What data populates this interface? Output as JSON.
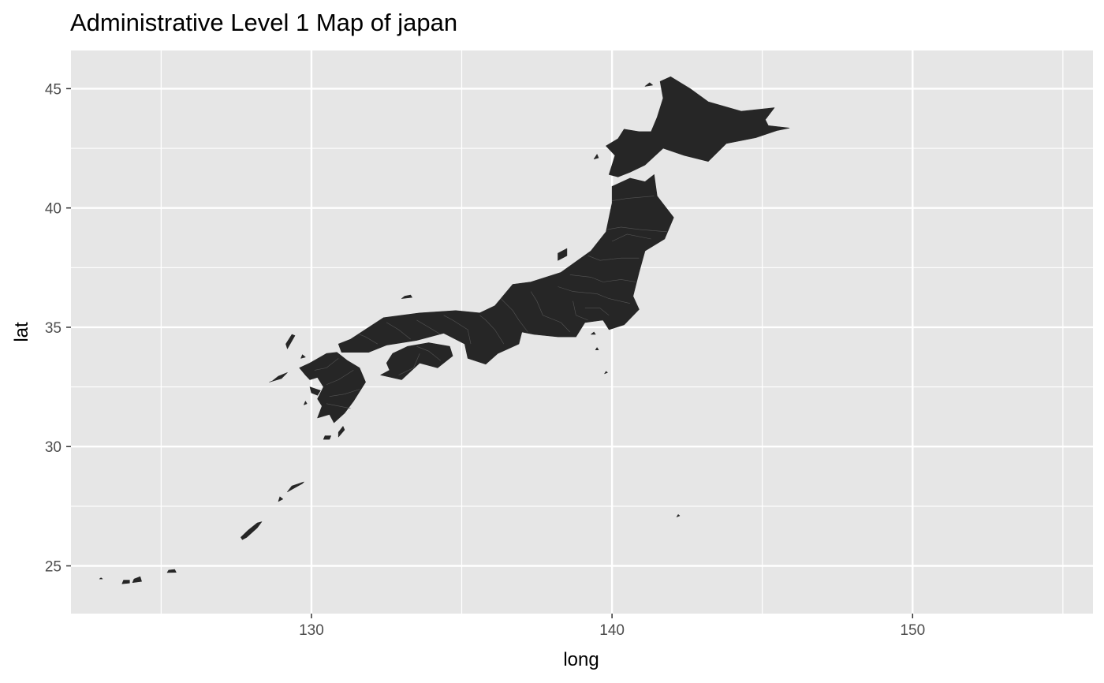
{
  "title": "Administrative Level 1 Map of japan",
  "chart_data": {
    "type": "map",
    "title": "Administrative Level 1 Map of japan",
    "xlabel": "long",
    "ylabel": "lat",
    "xlim": [
      122,
      156
    ],
    "ylim": [
      23,
      46.6
    ],
    "x_ticks": [
      130,
      140,
      150
    ],
    "y_ticks": [
      25,
      30,
      35,
      40,
      45
    ],
    "x_minor": [
      125,
      135,
      145,
      155
    ],
    "y_minor": [
      27.5,
      32.5,
      37.5,
      42.5
    ],
    "fill_color": "#262626",
    "panel_background": "#e6e6e6",
    "grid_color": "#ffffff",
    "regions": [
      {
        "name": "Hokkaido",
        "outline": [
          [
            139.9,
            41.4
          ],
          [
            140.2,
            41.3
          ],
          [
            140.6,
            41.5
          ],
          [
            141.1,
            41.8
          ],
          [
            141.7,
            42.5
          ],
          [
            142.4,
            42.2
          ],
          [
            143.2,
            41.95
          ],
          [
            143.8,
            42.7
          ],
          [
            144.8,
            42.95
          ],
          [
            145.5,
            43.25
          ],
          [
            145.9,
            43.35
          ],
          [
            145.2,
            43.45
          ],
          [
            145.1,
            43.7
          ],
          [
            145.4,
            44.2
          ],
          [
            144.3,
            44.05
          ],
          [
            143.2,
            44.45
          ],
          [
            142.6,
            45.0
          ],
          [
            141.95,
            45.5
          ],
          [
            141.6,
            45.3
          ],
          [
            141.7,
            44.6
          ],
          [
            141.5,
            43.8
          ],
          [
            141.3,
            43.2
          ],
          [
            140.9,
            43.2
          ],
          [
            140.4,
            43.3
          ],
          [
            140.2,
            42.9
          ],
          [
            139.8,
            42.6
          ],
          [
            140.1,
            42.2
          ]
        ]
      },
      {
        "name": "Honshu",
        "outline": [
          [
            141.4,
            41.4
          ],
          [
            141.5,
            40.5
          ],
          [
            142.05,
            39.6
          ],
          [
            141.75,
            38.7
          ],
          [
            141.1,
            38.2
          ],
          [
            140.9,
            37.3
          ],
          [
            140.7,
            36.3
          ],
          [
            140.9,
            35.75
          ],
          [
            140.4,
            35.1
          ],
          [
            139.9,
            34.9
          ],
          [
            139.7,
            35.3
          ],
          [
            139.1,
            35.2
          ],
          [
            138.8,
            34.6
          ],
          [
            138.2,
            34.6
          ],
          [
            137.4,
            34.7
          ],
          [
            137.0,
            34.8
          ],
          [
            136.9,
            34.3
          ],
          [
            136.2,
            33.9
          ],
          [
            135.8,
            33.45
          ],
          [
            135.2,
            33.7
          ],
          [
            135.1,
            34.3
          ],
          [
            134.4,
            34.75
          ],
          [
            133.5,
            34.45
          ],
          [
            132.5,
            34.25
          ],
          [
            131.9,
            33.95
          ],
          [
            131.0,
            33.95
          ],
          [
            130.9,
            34.3
          ],
          [
            131.3,
            34.5
          ],
          [
            132.4,
            35.4
          ],
          [
            133.6,
            35.6
          ],
          [
            134.8,
            35.7
          ],
          [
            135.6,
            35.6
          ],
          [
            136.1,
            35.9
          ],
          [
            136.7,
            36.8
          ],
          [
            137.3,
            36.9
          ],
          [
            138.3,
            37.3
          ],
          [
            139.3,
            38.2
          ],
          [
            139.8,
            39.0
          ],
          [
            140.0,
            40.2
          ],
          [
            140.0,
            40.9
          ],
          [
            140.6,
            41.25
          ],
          [
            141.1,
            41.1
          ],
          [
            141.3,
            41.3
          ]
        ]
      },
      {
        "name": "Shikoku",
        "outline": [
          [
            132.6,
            33.2
          ],
          [
            132.3,
            33.0
          ],
          [
            133.0,
            32.8
          ],
          [
            133.6,
            33.5
          ],
          [
            134.2,
            33.3
          ],
          [
            134.7,
            33.8
          ],
          [
            134.6,
            34.2
          ],
          [
            133.9,
            34.35
          ],
          [
            133.2,
            34.2
          ],
          [
            132.7,
            33.9
          ],
          [
            132.5,
            33.5
          ]
        ]
      },
      {
        "name": "Kyushu",
        "outline": [
          [
            130.85,
            33.95
          ],
          [
            131.2,
            33.6
          ],
          [
            131.6,
            33.3
          ],
          [
            131.8,
            32.7
          ],
          [
            131.4,
            31.9
          ],
          [
            131.1,
            31.4
          ],
          [
            130.75,
            31.0
          ],
          [
            130.6,
            31.35
          ],
          [
            130.2,
            31.2
          ],
          [
            130.35,
            31.7
          ],
          [
            130.2,
            32.0
          ],
          [
            130.4,
            32.5
          ],
          [
            130.2,
            32.9
          ],
          [
            129.95,
            32.8
          ],
          [
            129.8,
            33.0
          ],
          [
            129.6,
            33.3
          ],
          [
            129.95,
            33.5
          ],
          [
            130.5,
            33.9
          ]
        ]
      },
      {
        "name": "Sado",
        "outline": [
          [
            138.2,
            37.8
          ],
          [
            138.5,
            38.0
          ],
          [
            138.5,
            38.3
          ],
          [
            138.2,
            38.1
          ]
        ]
      },
      {
        "name": "Oki",
        "outline": [
          [
            133.0,
            36.2
          ],
          [
            133.35,
            36.25
          ],
          [
            133.3,
            36.35
          ],
          [
            133.1,
            36.3
          ]
        ]
      },
      {
        "name": "Tsushima",
        "outline": [
          [
            129.2,
            34.1
          ],
          [
            129.45,
            34.65
          ],
          [
            129.35,
            34.7
          ],
          [
            129.15,
            34.3
          ]
        ]
      },
      {
        "name": "Goto",
        "outline": [
          [
            128.6,
            32.7
          ],
          [
            129.0,
            32.85
          ],
          [
            129.2,
            33.1
          ],
          [
            128.9,
            32.95
          ],
          [
            128.7,
            32.75
          ]
        ]
      },
      {
        "name": "Amakusa",
        "outline": [
          [
            129.95,
            32.5
          ],
          [
            130.3,
            32.35
          ],
          [
            130.2,
            32.15
          ],
          [
            130.0,
            32.25
          ]
        ]
      },
      {
        "name": "Tanegashima",
        "outline": [
          [
            130.9,
            30.4
          ],
          [
            131.1,
            30.7
          ],
          [
            131.05,
            30.85
          ],
          [
            130.9,
            30.6
          ]
        ]
      },
      {
        "name": "Yakushima",
        "outline": [
          [
            130.4,
            30.3
          ],
          [
            130.6,
            30.3
          ],
          [
            130.65,
            30.45
          ],
          [
            130.45,
            30.45
          ]
        ]
      },
      {
        "name": "Amami",
        "outline": [
          [
            129.2,
            28.1
          ],
          [
            129.7,
            28.45
          ],
          [
            129.75,
            28.52
          ],
          [
            129.35,
            28.35
          ]
        ]
      },
      {
        "name": "Okinawa",
        "outline": [
          [
            127.7,
            26.1
          ],
          [
            127.85,
            26.2
          ],
          [
            128.2,
            26.6
          ],
          [
            128.35,
            26.85
          ],
          [
            128.2,
            26.8
          ],
          [
            127.9,
            26.5
          ],
          [
            127.65,
            26.2
          ]
        ]
      },
      {
        "name": "Ishigaki",
        "outline": [
          [
            124.05,
            24.3
          ],
          [
            124.35,
            24.35
          ],
          [
            124.3,
            24.55
          ],
          [
            124.1,
            24.45
          ]
        ]
      },
      {
        "name": "Iriomote",
        "outline": [
          [
            123.7,
            24.25
          ],
          [
            123.95,
            24.28
          ],
          [
            123.95,
            24.4
          ],
          [
            123.75,
            24.4
          ]
        ]
      },
      {
        "name": "Miyako",
        "outline": [
          [
            125.2,
            24.72
          ],
          [
            125.5,
            24.73
          ],
          [
            125.45,
            24.85
          ],
          [
            125.25,
            24.82
          ]
        ]
      },
      {
        "name": "Okushiri",
        "outline": [
          [
            139.4,
            42.05
          ],
          [
            139.55,
            42.1
          ],
          [
            139.5,
            42.25
          ]
        ]
      },
      {
        "name": "Rishiri",
        "outline": [
          [
            141.1,
            45.1
          ],
          [
            141.35,
            45.15
          ],
          [
            141.25,
            45.25
          ]
        ]
      },
      {
        "name": "Izu Oshima",
        "outline": [
          [
            139.3,
            34.7
          ],
          [
            139.45,
            34.7
          ],
          [
            139.4,
            34.8
          ]
        ]
      },
      {
        "name": "Miyakejima",
        "outline": [
          [
            139.45,
            34.05
          ],
          [
            139.55,
            34.05
          ],
          [
            139.5,
            34.15
          ]
        ]
      },
      {
        "name": "Hachijo",
        "outline": [
          [
            139.75,
            33.05
          ],
          [
            139.85,
            33.1
          ],
          [
            139.8,
            33.15
          ]
        ]
      },
      {
        "name": "Tokunoshima",
        "outline": [
          [
            128.9,
            27.7
          ],
          [
            129.05,
            27.8
          ],
          [
            128.95,
            27.9
          ]
        ]
      },
      {
        "name": "Iki",
        "outline": [
          [
            129.65,
            33.7
          ],
          [
            129.8,
            33.75
          ],
          [
            129.7,
            33.85
          ]
        ]
      },
      {
        "name": "Chichijima",
        "outline": [
          [
            142.15,
            27.05
          ],
          [
            142.25,
            27.1
          ],
          [
            142.2,
            27.15
          ]
        ]
      },
      {
        "name": "Yonaguni",
        "outline": [
          [
            122.95,
            24.45
          ],
          [
            123.05,
            24.45
          ],
          [
            123.0,
            24.5
          ]
        ]
      },
      {
        "name": "Koshikijima",
        "outline": [
          [
            129.75,
            31.75
          ],
          [
            129.85,
            31.8
          ],
          [
            129.8,
            31.9
          ]
        ]
      }
    ],
    "boundaries": [
      [
        [
          141.4,
          40.5
        ],
        [
          140.5,
          40.4
        ],
        [
          140.0,
          40.3
        ]
      ],
      [
        [
          141.85,
          39.0
        ],
        [
          140.9,
          39.1
        ],
        [
          140.3,
          39.2
        ],
        [
          139.85,
          39.1
        ]
      ],
      [
        [
          141.3,
          38.7
        ],
        [
          140.5,
          38.9
        ],
        [
          140.0,
          38.6
        ]
      ],
      [
        [
          140.9,
          37.9
        ],
        [
          140.3,
          37.9
        ],
        [
          139.6,
          37.8
        ],
        [
          139.2,
          38.0
        ]
      ],
      [
        [
          140.8,
          36.9
        ],
        [
          140.3,
          37.0
        ],
        [
          139.7,
          36.9
        ],
        [
          139.3,
          37.1
        ],
        [
          138.6,
          37.2
        ]
      ],
      [
        [
          140.6,
          36.0
        ],
        [
          139.9,
          36.2
        ],
        [
          139.5,
          36.4
        ],
        [
          138.7,
          36.5
        ],
        [
          138.2,
          36.7
        ]
      ],
      [
        [
          139.9,
          35.5
        ],
        [
          139.6,
          35.8
        ],
        [
          139.1,
          35.8
        ]
      ],
      [
        [
          139.2,
          35.3
        ],
        [
          138.8,
          35.5
        ],
        [
          138.7,
          36.1
        ]
      ],
      [
        [
          138.6,
          34.8
        ],
        [
          138.3,
          35.2
        ],
        [
          137.7,
          35.5
        ],
        [
          137.5,
          36.1
        ],
        [
          137.3,
          36.5
        ]
      ],
      [
        [
          137.2,
          34.8
        ],
        [
          136.9,
          35.3
        ],
        [
          136.7,
          35.7
        ],
        [
          136.3,
          36.2
        ]
      ],
      [
        [
          136.4,
          34.3
        ],
        [
          136.1,
          34.9
        ],
        [
          135.8,
          35.3
        ],
        [
          135.6,
          35.5
        ]
      ],
      [
        [
          135.3,
          34.3
        ],
        [
          135.2,
          34.9
        ],
        [
          134.7,
          35.3
        ],
        [
          134.4,
          35.5
        ]
      ],
      [
        [
          134.3,
          34.7
        ],
        [
          133.9,
          35.0
        ],
        [
          133.5,
          35.3
        ]
      ],
      [
        [
          133.3,
          34.5
        ],
        [
          132.9,
          34.9
        ],
        [
          132.5,
          35.2
        ]
      ],
      [
        [
          132.2,
          34.3
        ],
        [
          131.8,
          34.6
        ],
        [
          131.6,
          34.7
        ]
      ],
      [
        [
          132.9,
          33.0
        ],
        [
          133.4,
          33.3
        ],
        [
          133.6,
          33.9
        ]
      ],
      [
        [
          134.3,
          33.6
        ],
        [
          133.9,
          34.0
        ],
        [
          133.5,
          34.2
        ]
      ],
      [
        [
          130.9,
          33.7
        ],
        [
          130.5,
          33.3
        ],
        [
          130.1,
          33.2
        ]
      ],
      [
        [
          131.4,
          33.2
        ],
        [
          130.9,
          32.8
        ],
        [
          130.5,
          32.6
        ]
      ],
      [
        [
          131.6,
          32.4
        ],
        [
          131.1,
          32.2
        ],
        [
          130.6,
          32.1
        ]
      ],
      [
        [
          131.3,
          31.6
        ],
        [
          130.9,
          31.7
        ],
        [
          130.5,
          31.8
        ]
      ]
    ]
  }
}
